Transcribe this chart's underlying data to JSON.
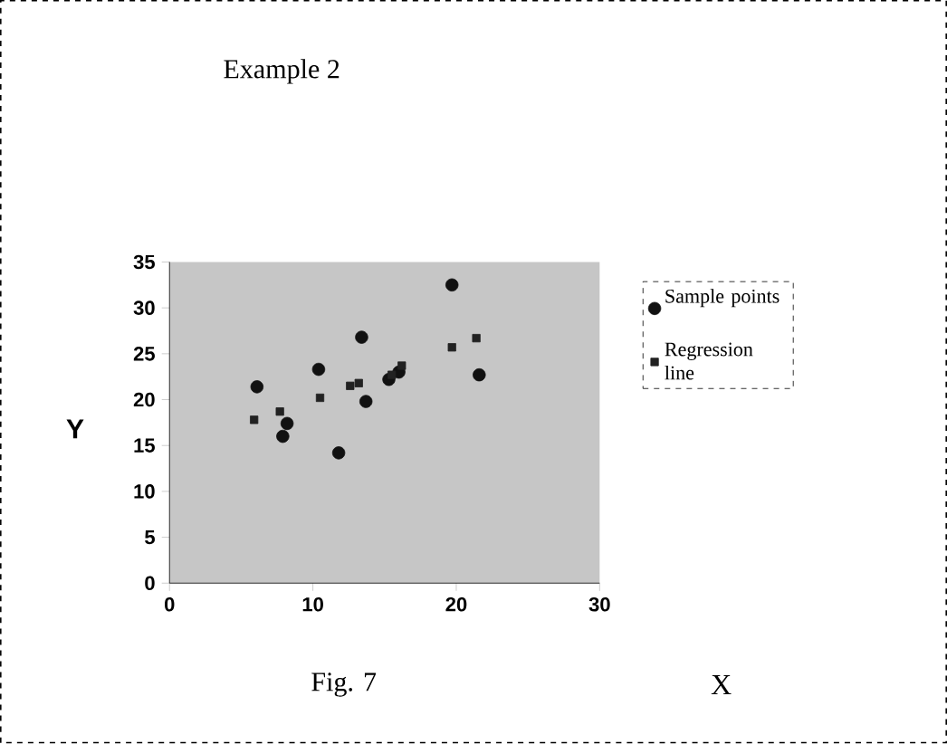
{
  "chart_data": {
    "type": "scatter",
    "title": "Example 2",
    "xlabel": "X",
    "ylabel": "Y",
    "annotations": [
      "Fig. 7"
    ],
    "xlim": [
      0,
      30
    ],
    "ylim": [
      0,
      35
    ],
    "xticks": [
      0,
      10,
      20,
      30
    ],
    "yticks": [
      0,
      5,
      10,
      15,
      20,
      25,
      30,
      35
    ],
    "legend": "right",
    "grid": false,
    "series": [
      {
        "name": "Sample points",
        "color": "#111111",
        "marker": "circle",
        "x": [
          6.1,
          10.4,
          13.4,
          13.7,
          11.8,
          7.9,
          8.2,
          15.3,
          21.6,
          19.7,
          16.0
        ],
        "values": [
          21.4,
          23.3,
          26.8,
          19.8,
          14.2,
          16.0,
          17.4,
          22.2,
          22.7,
          32.5,
          23.0
        ]
      },
      {
        "name": "Regression line",
        "color": "#222222",
        "marker": "square",
        "x": [
          5.9,
          7.7,
          10.5,
          12.6,
          13.2,
          15.5,
          16.2,
          19.7,
          21.4
        ],
        "values": [
          17.8,
          18.7,
          20.2,
          21.5,
          21.8,
          22.7,
          23.7,
          25.7,
          26.7
        ]
      }
    ]
  }
}
